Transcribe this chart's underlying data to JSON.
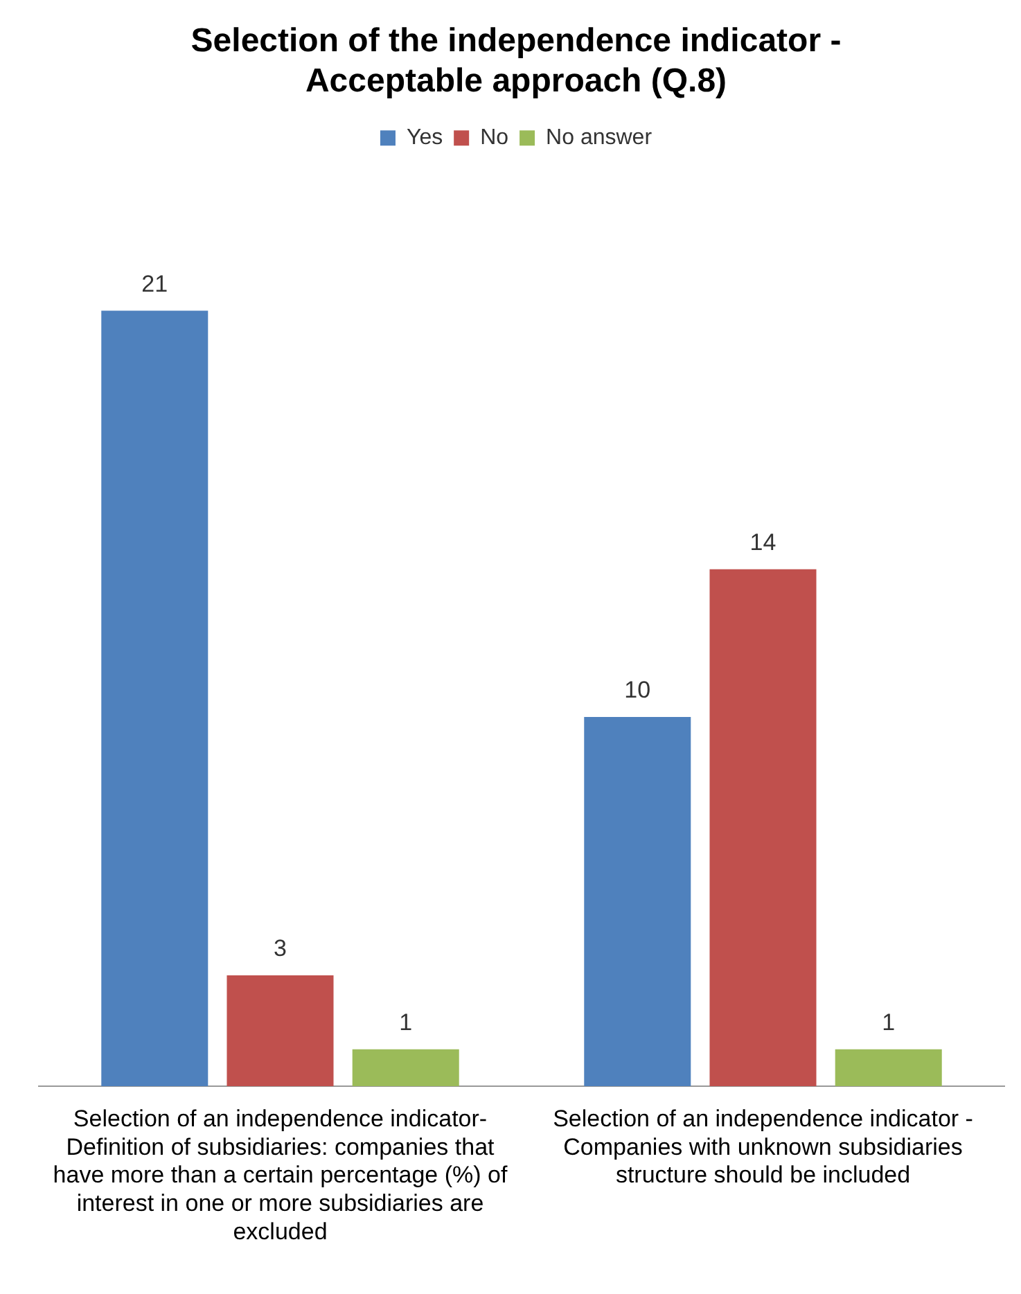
{
  "chart_data": {
    "type": "bar",
    "title": "Selection of the independence indicator - Acceptable approach (Q.8)",
    "categories": [
      "Selection of an independence indicator- Definition of subsidiaries: companies that have more than a certain percentage (%) of interest in one or more subsidiaries are excluded",
      "Selection of an independence indicator - Companies with unknown subsidiaries structure should be included"
    ],
    "series": [
      {
        "name": "Yes",
        "color": "#4f81bd",
        "values": [
          21,
          10
        ]
      },
      {
        "name": "No",
        "color": "#c0504d",
        "values": [
          3,
          14
        ]
      },
      {
        "name": "No answer",
        "color": "#9bbb59",
        "values": [
          1,
          1
        ]
      }
    ],
    "data_labels": true,
    "legend": "top",
    "grid": false
  }
}
